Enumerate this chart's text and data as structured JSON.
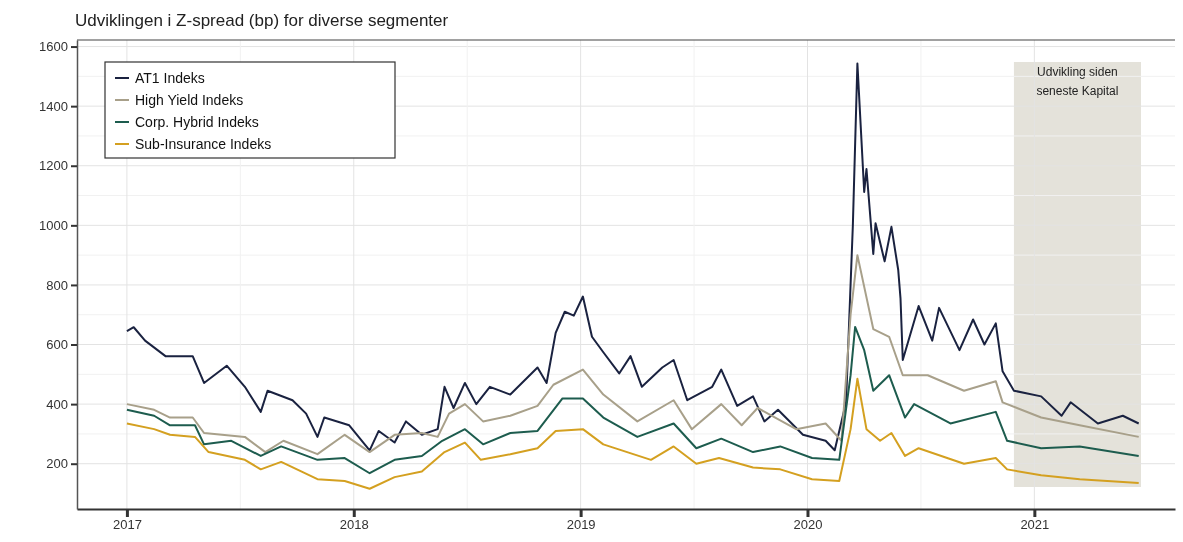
{
  "chart_data": {
    "type": "line",
    "title": "Udviklingen i Z-spread (bp) for diverse segmenter",
    "xlim": [
      2016.78,
      2021.62
    ],
    "xticks": [
      2017,
      2018,
      2019,
      2020,
      2021
    ],
    "ylim": [
      48,
      1622
    ],
    "yticks": [
      200,
      400,
      600,
      800,
      1000,
      1200,
      1400,
      1600
    ],
    "grid": true,
    "legend": "top left",
    "line_style": "solid",
    "marker": "none",
    "bands": [
      {
        "axis": "x",
        "from": 2020.91,
        "to": 2021.47,
        "label": "Udvikling siden seneste Kapital",
        "color": "#e4e2da"
      }
    ],
    "series": [
      {
        "name": "AT1 Indeks",
        "color": "#1a2240",
        "x": [
          2017.0,
          2017.03,
          2017.08,
          2017.17,
          2017.29,
          2017.34,
          2017.44,
          2017.52,
          2017.59,
          2017.62,
          2017.73,
          2017.79,
          2017.84,
          2017.87,
          2017.98,
          2018.07,
          2018.11,
          2018.18,
          2018.23,
          2018.3,
          2018.37,
          2018.4,
          2018.44,
          2018.49,
          2018.54,
          2018.6,
          2018.69,
          2018.81,
          2018.85,
          2018.89,
          2018.93,
          2018.97,
          2019.01,
          2019.05,
          2019.1,
          2019.17,
          2019.22,
          2019.27,
          2019.36,
          2019.41,
          2019.47,
          2019.58,
          2019.62,
          2019.69,
          2019.76,
          2019.81,
          2019.87,
          2019.98,
          2020.08,
          2020.12,
          2020.17,
          2020.2,
          2020.22,
          2020.25,
          2020.26,
          2020.29,
          2020.3,
          2020.34,
          2020.37,
          2020.4,
          2020.41,
          2020.42,
          2020.49,
          2020.55,
          2020.58,
          2020.67,
          2020.73,
          2020.78,
          2020.83,
          2020.86,
          2020.91,
          2021.03,
          2021.12,
          2021.16,
          2021.28,
          2021.39,
          2021.46
        ],
        "values": [
          645,
          658,
          613,
          561,
          561,
          471,
          529,
          458,
          374,
          445,
          413,
          368,
          290,
          355,
          329,
          245,
          310,
          271,
          342,
          297,
          316,
          458,
          387,
          471,
          400,
          458,
          432,
          523,
          471,
          639,
          710,
          697,
          761,
          626,
          574,
          503,
          561,
          458,
          523,
          548,
          413,
          458,
          516,
          394,
          426,
          342,
          381,
          297,
          277,
          245,
          406,
          1000,
          1543,
          1112,
          1189,
          904,
          1007,
          879,
          995,
          850,
          755,
          548,
          729,
          613,
          723,
          581,
          684,
          600,
          671,
          510,
          445,
          426,
          361,
          406,
          335,
          361,
          335
        ]
      },
      {
        "name": "High Yield Indeks",
        "color": "#a8a08a",
        "x": [
          2017.0,
          2017.12,
          2017.19,
          2017.29,
          2017.34,
          2017.52,
          2017.61,
          2017.69,
          2017.84,
          2017.96,
          2018.07,
          2018.18,
          2018.3,
          2018.37,
          2018.42,
          2018.49,
          2018.57,
          2018.69,
          2018.81,
          2018.88,
          2019.01,
          2019.1,
          2019.25,
          2019.41,
          2019.49,
          2019.62,
          2019.71,
          2019.78,
          2019.95,
          2020.08,
          2020.15,
          2020.19,
          2020.22,
          2020.29,
          2020.36,
          2020.42,
          2020.53,
          2020.69,
          2020.83,
          2020.86,
          2021.03,
          2021.2,
          2021.46
        ],
        "values": [
          400,
          381,
          355,
          355,
          303,
          290,
          239,
          277,
          232,
          297,
          239,
          297,
          303,
          290,
          368,
          400,
          342,
          361,
          394,
          465,
          516,
          432,
          342,
          413,
          316,
          400,
          329,
          387,
          316,
          335,
          277,
          700,
          900,
          652,
          626,
          497,
          497,
          445,
          477,
          406,
          355,
          329,
          290
        ]
      },
      {
        "name": "Corp. Hybrid Indeks",
        "color": "#1d5c4e",
        "x": [
          2017.0,
          2017.12,
          2017.19,
          2017.3,
          2017.34,
          2017.46,
          2017.59,
          2017.68,
          2017.84,
          2017.96,
          2018.07,
          2018.18,
          2018.3,
          2018.39,
          2018.49,
          2018.57,
          2018.69,
          2018.81,
          2018.92,
          2019.01,
          2019.1,
          2019.25,
          2019.41,
          2019.51,
          2019.62,
          2019.76,
          2019.88,
          2020.02,
          2020.14,
          2020.19,
          2020.21,
          2020.25,
          2020.29,
          2020.36,
          2020.43,
          2020.47,
          2020.63,
          2020.83,
          2020.88,
          2021.03,
          2021.2,
          2021.46
        ],
        "values": [
          381,
          361,
          329,
          329,
          265,
          277,
          226,
          258,
          213,
          219,
          168,
          213,
          226,
          277,
          316,
          265,
          303,
          310,
          419,
          419,
          355,
          290,
          335,
          252,
          284,
          239,
          258,
          219,
          213,
          497,
          659,
          581,
          445,
          497,
          355,
          400,
          335,
          374,
          277,
          252,
          258,
          226
        ]
      },
      {
        "name": "Sub-Insurance Indeks",
        "color": "#d4a020",
        "x": [
          2017.0,
          2017.12,
          2017.19,
          2017.3,
          2017.36,
          2017.52,
          2017.59,
          2017.68,
          2017.84,
          2017.96,
          2018.07,
          2018.18,
          2018.3,
          2018.4,
          2018.49,
          2018.56,
          2018.69,
          2018.81,
          2018.89,
          2019.01,
          2019.1,
          2019.31,
          2019.41,
          2019.51,
          2019.61,
          2019.76,
          2019.88,
          2020.02,
          2020.14,
          2020.19,
          2020.22,
          2020.26,
          2020.32,
          2020.37,
          2020.43,
          2020.49,
          2020.69,
          2020.83,
          2020.88,
          2021.03,
          2021.2,
          2021.46
        ],
        "values": [
          335,
          316,
          297,
          290,
          239,
          213,
          181,
          206,
          148,
          142,
          116,
          155,
          174,
          239,
          271,
          213,
          232,
          252,
          310,
          316,
          265,
          213,
          258,
          200,
          219,
          187,
          181,
          148,
          142,
          316,
          485,
          316,
          277,
          303,
          226,
          252,
          200,
          219,
          181,
          161,
          148,
          135
        ]
      }
    ]
  }
}
